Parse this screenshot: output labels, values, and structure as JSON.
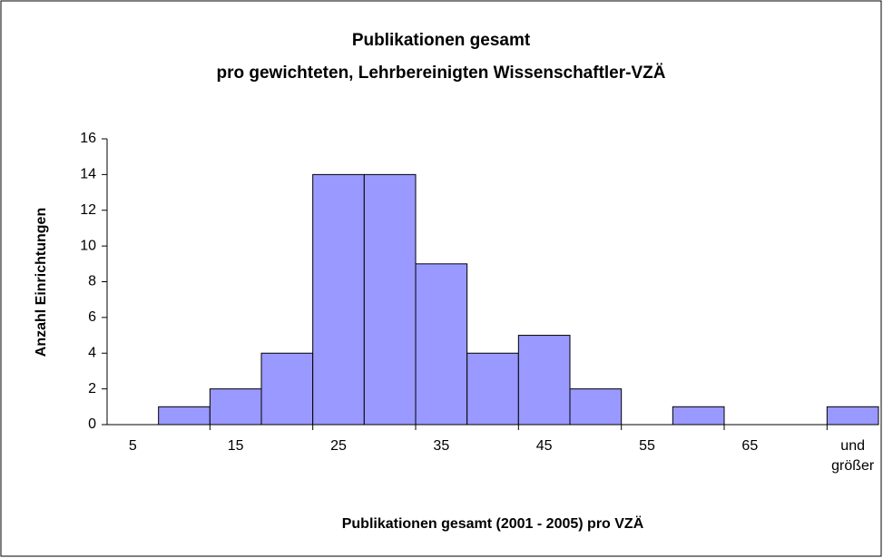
{
  "chart_data": {
    "type": "bar",
    "title": "Publikationen gesamt",
    "subtitle": "pro gewichteten, Lehrbereinigten Wissenschaftler-VZÄ",
    "x_label": "Publikationen gesamt (2001 - 2005) pro VZÄ",
    "y_label": "Anzahl Einrichtungen",
    "categories": [
      "5",
      null,
      "15",
      null,
      "25",
      null,
      "35",
      null,
      "45",
      null,
      "55",
      null,
      "65",
      null,
      "und größer"
    ],
    "values": [
      0,
      1,
      2,
      4,
      14,
      14,
      9,
      4,
      5,
      2,
      0,
      1,
      0,
      0,
      1
    ],
    "color": "#9999ff",
    "ylim": [
      0,
      16
    ],
    "yticks": [
      0,
      2,
      4,
      6,
      8,
      10,
      12,
      14,
      16
    ],
    "grid": false
  }
}
